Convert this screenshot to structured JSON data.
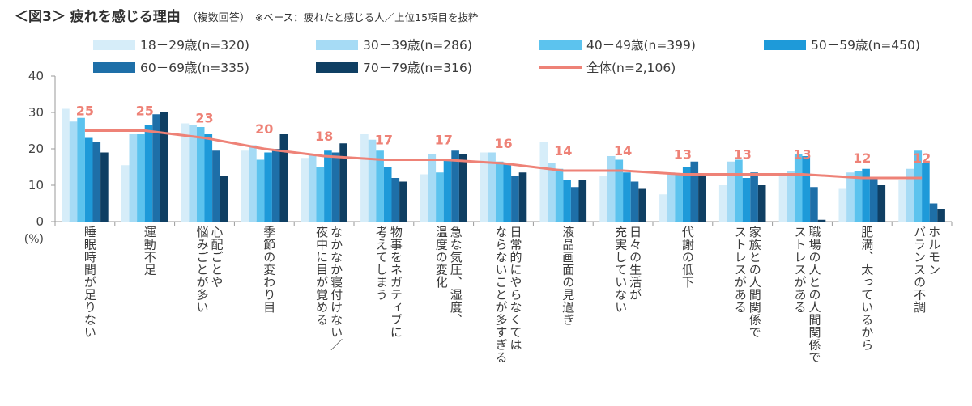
{
  "title": {
    "main": "＜図3＞ 疲れを感じる理由",
    "sub": "（複数回答）",
    "note": "※ベース：疲れたと感じる人／上位15項目を抜粋"
  },
  "chart_data": {
    "type": "bar",
    "ylim": [
      0,
      40
    ],
    "yticks": [
      0,
      10,
      20,
      30,
      40
    ],
    "ylabel": "(%)",
    "grid": false,
    "legend_position": "top",
    "categories": [
      [
        "睡眠時間が足りない"
      ],
      [
        "運動不足"
      ],
      [
        "心配ごとや",
        "悩みごとが多い"
      ],
      [
        "季節の変わり目"
      ],
      [
        "なかなか寝付けない／",
        "夜中に目が覚める"
      ],
      [
        "物事をネガティブに",
        "考えてしまう"
      ],
      [
        "急な気圧、湿度、",
        "温度の変化"
      ],
      [
        "日常的にやらなくては",
        "ならないことが多すぎる"
      ],
      [
        "液晶画面の見過ぎ"
      ],
      [
        "日々の生活が",
        "充実していない"
      ],
      [
        "代謝の低下"
      ],
      [
        "家族との人間関係で",
        "ストレスがある"
      ],
      [
        "職場の人との人間関係で",
        "ストレスがある"
      ],
      [
        "肥満、太っているから"
      ],
      [
        "ホルモン",
        "バランスの不調"
      ]
    ],
    "series": [
      {
        "name": "18－29歳(n=320)",
        "color": "#d6edf9",
        "values": [
          31.0,
          15.5,
          27.0,
          19.5,
          17.5,
          24.0,
          13.0,
          19.0,
          22.0,
          12.5,
          7.5,
          10.0,
          12.5,
          9.0,
          11.5
        ]
      },
      {
        "name": "30－39歳(n=286)",
        "color": "#a6dbf5",
        "values": [
          27.5,
          24.0,
          26.5,
          21.0,
          18.5,
          22.5,
          18.5,
          19.0,
          16.0,
          18.0,
          13.5,
          16.5,
          14.0,
          13.5,
          14.5
        ]
      },
      {
        "name": "40－49歳(n=399)",
        "color": "#5cc3ee",
        "values": [
          28.5,
          24.0,
          26.0,
          17.0,
          15.0,
          19.5,
          13.5,
          16.5,
          14.5,
          17.0,
          13.0,
          17.0,
          18.5,
          14.0,
          19.5
        ]
      },
      {
        "name": "50－59歳(n=450)",
        "color": "#1e9ad9",
        "values": [
          23.0,
          26.5,
          24.0,
          19.0,
          19.5,
          15.0,
          17.0,
          16.0,
          11.5,
          13.5,
          15.0,
          12.0,
          18.0,
          14.5,
          16.0
        ]
      },
      {
        "name": "60－69歳(n=335)",
        "color": "#1e6fa8",
        "values": [
          22.0,
          29.5,
          19.5,
          20.0,
          19.0,
          12.0,
          19.5,
          12.5,
          9.5,
          11.0,
          16.5,
          13.5,
          9.5,
          12.0,
          5.0
        ]
      },
      {
        "name": "70－79歳(n=316)",
        "color": "#0f3f63",
        "values": [
          19.0,
          30.0,
          12.5,
          24.0,
          21.5,
          11.0,
          18.5,
          13.5,
          11.5,
          9.0,
          13.0,
          10.0,
          0.5,
          10.0,
          3.5
        ]
      }
    ],
    "total": {
      "name": "全体(n=2,106)",
      "color": "#ee8277",
      "values": [
        25,
        25,
        23,
        20,
        18,
        17,
        17,
        16,
        14,
        14,
        13,
        13,
        13,
        12,
        12
      ]
    }
  }
}
